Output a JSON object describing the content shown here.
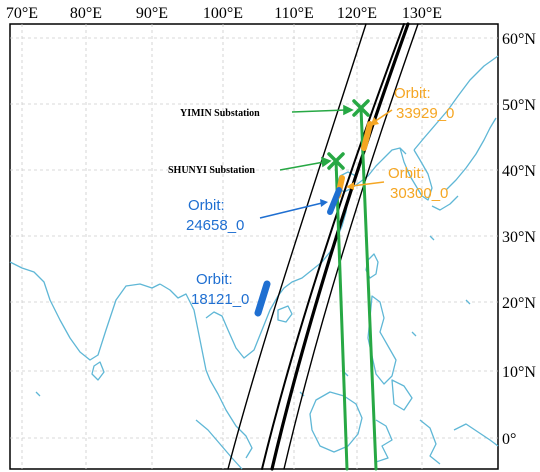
{
  "map": {
    "lon_ticks": [
      "70°E",
      "80°E",
      "90°E",
      "100°E",
      "110°E",
      "120°E",
      "130°E"
    ],
    "lat_ticks": [
      "60°N",
      "50°N",
      "40°N",
      "30°N",
      "20°N",
      "10°N",
      "0°"
    ],
    "stations": [
      {
        "name": "YIMIN Substation"
      },
      {
        "name": "SHUNYI Substation"
      }
    ],
    "orbits": [
      {
        "title": "Orbit:",
        "id": "33929_0",
        "color": "#f5a623"
      },
      {
        "title": "Orbit:",
        "id": "30300_0",
        "color": "#f5a623"
      },
      {
        "title": "Orbit:",
        "id": "24658_0",
        "color": "#1f6fd1"
      },
      {
        "title": "Orbit:",
        "id": "18121_0",
        "color": "#1f6fd1"
      }
    ],
    "colors": {
      "coastline": "#5fb7d6",
      "station_marker": "#27a844",
      "ground_track": "#000000",
      "grid": "#cccccc"
    }
  }
}
